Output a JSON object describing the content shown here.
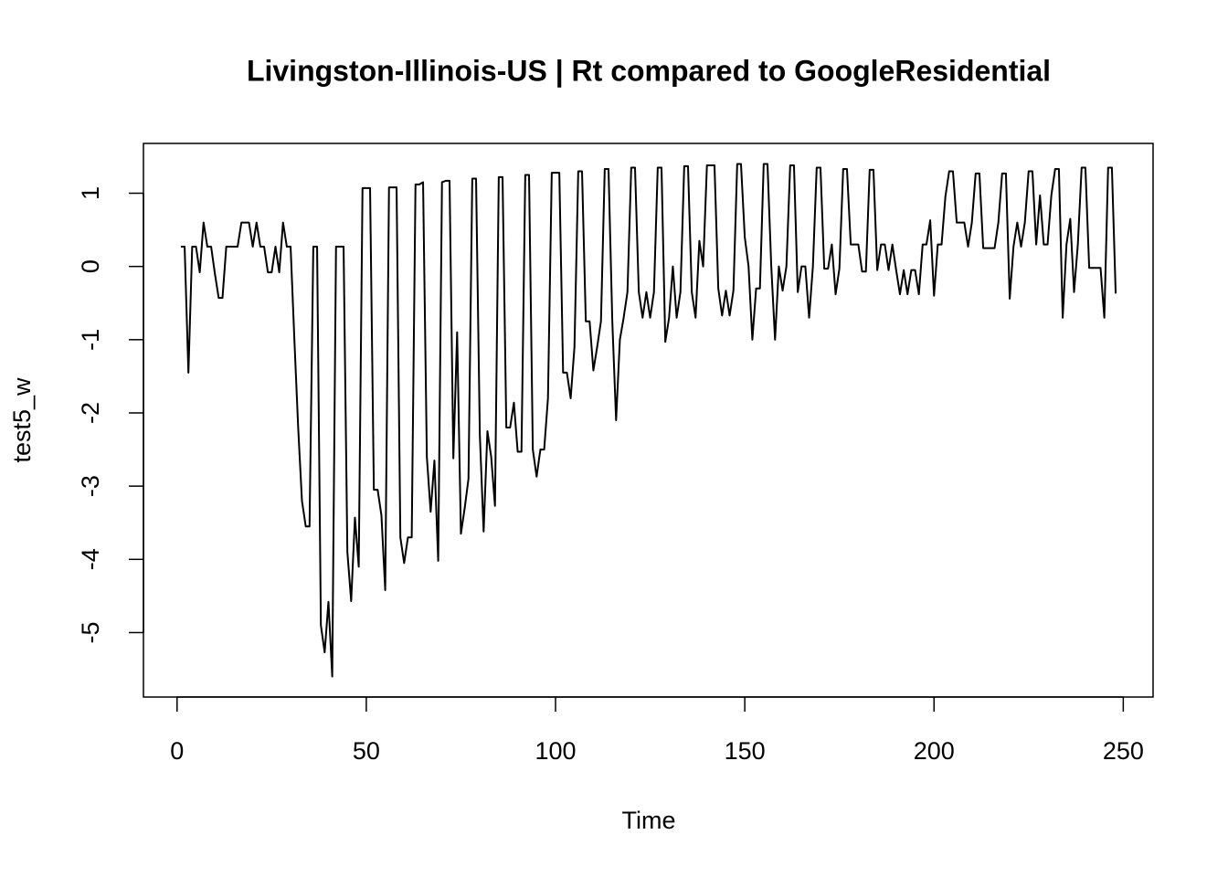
{
  "chart_data": {
    "type": "line",
    "title": "Livingston-Illinois-US | Rt compared to GoogleResidential",
    "x_label": "Time",
    "y_label": "test5_w",
    "x": [
      1,
      2,
      3,
      4,
      5,
      6,
      7,
      8,
      9,
      10,
      11,
      12,
      13,
      14,
      15,
      16,
      17,
      18,
      19,
      20,
      21,
      22,
      23,
      24,
      25,
      26,
      27,
      28,
      29,
      30,
      31,
      32,
      33,
      34,
      35,
      36,
      37,
      38,
      39,
      40,
      41,
      42,
      43,
      44,
      45,
      46,
      47,
      48,
      49,
      50,
      51,
      52,
      53,
      54,
      55,
      56,
      57,
      58,
      59,
      60,
      61,
      62,
      63,
      64,
      65,
      66,
      67,
      68,
      69,
      70,
      71,
      72,
      73,
      74,
      75,
      76,
      77,
      78,
      79,
      80,
      81,
      82,
      83,
      84,
      85,
      86,
      87,
      88,
      89,
      90,
      91,
      92,
      93,
      94,
      95,
      96,
      97,
      98,
      99,
      100,
      101,
      102,
      103,
      104,
      105,
      106,
      107,
      108,
      109,
      110,
      111,
      112,
      113,
      114,
      115,
      116,
      117,
      118,
      119,
      120,
      121,
      122,
      123,
      124,
      125,
      126,
      127,
      128,
      129,
      130,
      131,
      132,
      133,
      134,
      135,
      136,
      137,
      138,
      139,
      140,
      141,
      142,
      143,
      144,
      145,
      146,
      147,
      148,
      149,
      150,
      151,
      152,
      153,
      154,
      155,
      156,
      157,
      158,
      159,
      160,
      161,
      162,
      163,
      164,
      165,
      166,
      167,
      168,
      169,
      170,
      171,
      172,
      173,
      174,
      175,
      176,
      177,
      178,
      179,
      180,
      181,
      182,
      183,
      184,
      185,
      186,
      187,
      188,
      189,
      190,
      191,
      192,
      193,
      194,
      195,
      196,
      197,
      198,
      199,
      200,
      201,
      202,
      203,
      204,
      205,
      206,
      207,
      208,
      209,
      210,
      211,
      212,
      213,
      214,
      215,
      216,
      217,
      218,
      219,
      220,
      221,
      222,
      223,
      224,
      225,
      226,
      227,
      228,
      229,
      230,
      231,
      232,
      233,
      234,
      235,
      236,
      237,
      238,
      239,
      240,
      241,
      242,
      243,
      244,
      245,
      246,
      247,
      248
    ],
    "series": [
      {
        "name": "test5_w",
        "color": "#000000",
        "values": [
          0.27,
          0.27,
          -1.45,
          0.27,
          0.27,
          -0.08,
          0.6,
          0.27,
          0.27,
          -0.1,
          -0.43,
          -0.43,
          0.27,
          0.27,
          0.27,
          0.27,
          0.6,
          0.6,
          0.6,
          0.27,
          0.6,
          0.27,
          0.27,
          -0.08,
          -0.08,
          0.27,
          -0.08,
          0.6,
          0.27,
          0.27,
          -1.0,
          -2.2,
          -3.2,
          -3.55,
          -3.55,
          0.27,
          0.27,
          -4.9,
          -5.27,
          -4.58,
          -5.6,
          0.27,
          0.27,
          0.27,
          -3.9,
          -4.57,
          -3.43,
          -4.1,
          1.07,
          1.07,
          1.07,
          -3.05,
          -3.05,
          -3.4,
          -4.42,
          1.08,
          1.08,
          1.08,
          -3.7,
          -4.05,
          -3.7,
          -3.7,
          1.12,
          1.12,
          1.15,
          -2.6,
          -3.35,
          -2.65,
          -4.02,
          1.15,
          1.17,
          1.17,
          -2.62,
          -0.9,
          -3.65,
          -3.3,
          -2.9,
          1.2,
          1.2,
          -2.3,
          -3.62,
          -2.25,
          -2.6,
          -3.27,
          1.22,
          1.22,
          -2.2,
          -2.2,
          -1.86,
          -2.53,
          -2.53,
          1.25,
          1.25,
          -2.5,
          -2.87,
          -2.5,
          -2.5,
          -1.8,
          1.28,
          1.28,
          1.28,
          -1.45,
          -1.45,
          -1.8,
          -1.1,
          1.3,
          1.3,
          -0.75,
          -0.75,
          -1.42,
          -1.1,
          -0.75,
          1.33,
          1.33,
          -0.75,
          -2.1,
          -1.0,
          -0.7,
          -0.35,
          1.35,
          1.35,
          -0.35,
          -0.7,
          -0.35,
          -0.7,
          -0.35,
          1.35,
          1.35,
          -1.03,
          -0.7,
          0.0,
          -0.7,
          -0.35,
          1.37,
          1.37,
          -0.35,
          -0.7,
          0.35,
          0.0,
          1.38,
          1.38,
          1.38,
          -0.3,
          -0.67,
          -0.33,
          -0.67,
          -0.33,
          1.4,
          1.4,
          0.4,
          0.0,
          -1.0,
          -0.3,
          -0.3,
          1.4,
          1.4,
          0.0,
          -1.0,
          0.0,
          -0.33,
          0.0,
          1.38,
          1.38,
          -0.35,
          0.0,
          0.0,
          -0.7,
          0.0,
          1.35,
          1.35,
          -0.03,
          -0.03,
          0.3,
          -0.38,
          -0.03,
          1.33,
          1.33,
          0.3,
          0.3,
          0.3,
          -0.07,
          -0.07,
          1.32,
          1.32,
          -0.05,
          0.3,
          0.3,
          -0.05,
          0.3,
          -0.05,
          -0.38,
          -0.05,
          -0.38,
          -0.05,
          -0.05,
          -0.38,
          0.3,
          0.3,
          0.63,
          -0.4,
          0.3,
          0.3,
          0.95,
          1.3,
          1.3,
          0.6,
          0.6,
          0.6,
          0.27,
          0.6,
          1.27,
          1.27,
          0.25,
          0.25,
          0.25,
          0.25,
          0.6,
          1.27,
          1.27,
          -0.44,
          0.27,
          0.6,
          0.27,
          0.6,
          1.3,
          1.3,
          0.3,
          0.97,
          0.3,
          0.3,
          0.97,
          1.33,
          1.33,
          -0.7,
          0.3,
          0.65,
          -0.35,
          0.3,
          1.35,
          1.35,
          -0.02,
          -0.02,
          -0.02,
          -0.02,
          -0.7,
          1.35,
          1.35,
          -0.37
        ]
      }
    ],
    "xlim": [
      -8.88,
      257.88
    ],
    "ylim": [
      -5.88,
      1.68
    ],
    "xticks": [
      0,
      50,
      100,
      150,
      200,
      250
    ],
    "yticks": [
      -5,
      -4,
      -3,
      -2,
      -1,
      0,
      1
    ]
  }
}
